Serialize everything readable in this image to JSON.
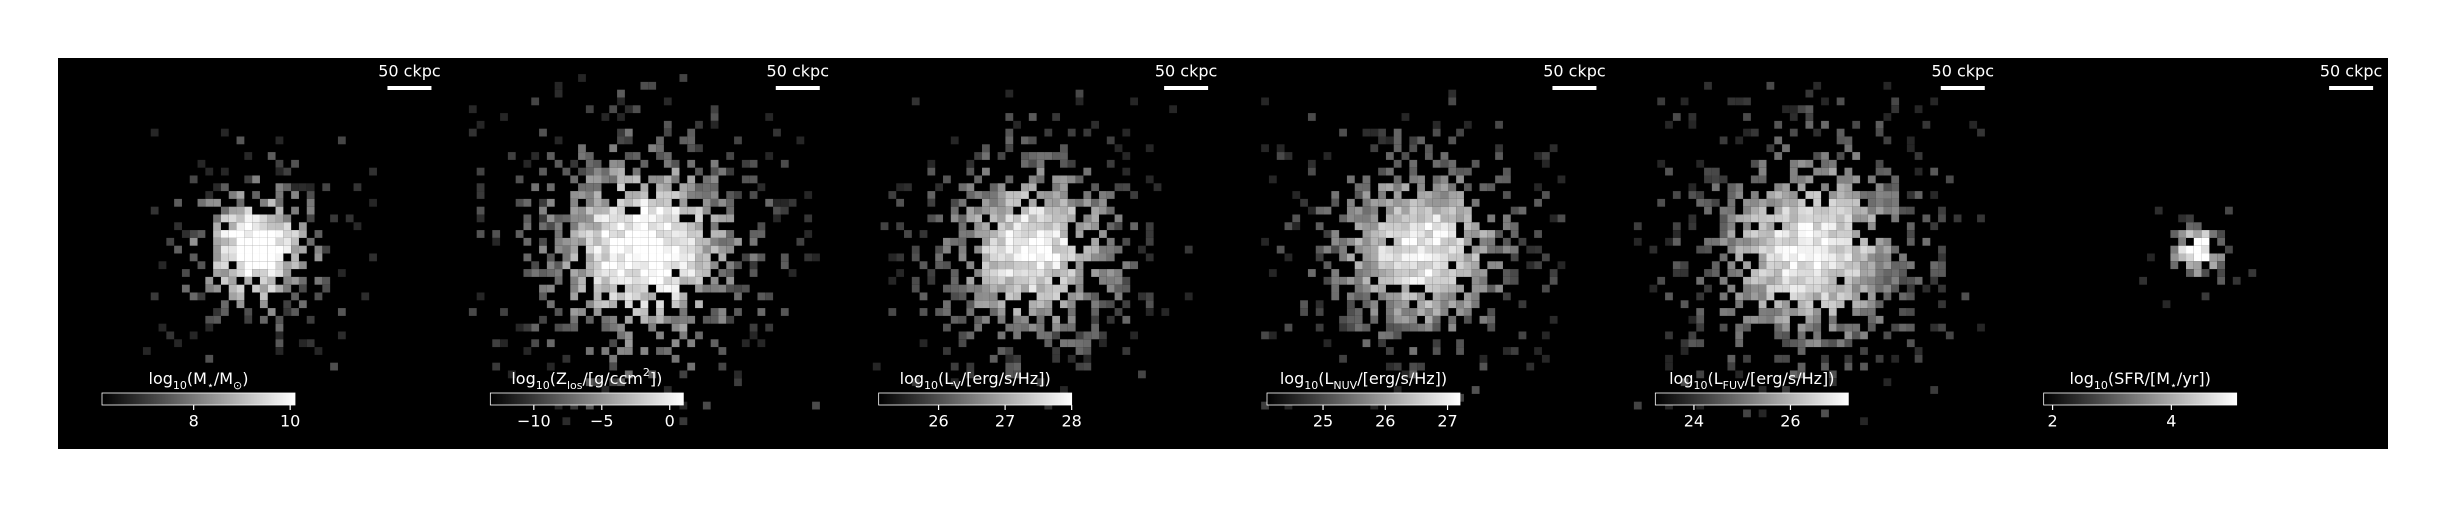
{
  "chart_data": [
    {
      "type": "image",
      "scale_label": "50 ckpc",
      "colorbar_label": [
        {
          "text": "log"
        },
        {
          "text": "10",
          "sub": true
        },
        {
          "text": "(M"
        },
        {
          "text": "⋆",
          "sub": true
        },
        {
          "text": "/M"
        },
        {
          "text": "⊙",
          "sub": true
        },
        {
          "text": ")"
        }
      ],
      "clim": [
        6.1,
        10.1
      ],
      "ticks": [
        8,
        10
      ]
    },
    {
      "type": "image",
      "scale_label": "50 ckpc",
      "colorbar_label": [
        {
          "text": "log"
        },
        {
          "text": "10",
          "sub": true
        },
        {
          "text": "(Z"
        },
        {
          "text": "los",
          "sub": true
        },
        {
          "text": "/[g/ccm"
        },
        {
          "text": "2",
          "sup": true
        },
        {
          "text": "])"
        }
      ],
      "clim": [
        -13.2,
        1.0
      ],
      "ticks": [
        {
          "value": -10,
          "label": "−10"
        },
        {
          "value": -5,
          "label": "−5"
        },
        0
      ]
    },
    {
      "type": "image",
      "scale_label": "50 ckpc",
      "colorbar_label": [
        {
          "text": "log"
        },
        {
          "text": "10",
          "sub": true
        },
        {
          "text": "(L"
        },
        {
          "text": "V",
          "sub": true
        },
        {
          "text": "/[erg/s/Hz])"
        }
      ],
      "clim": [
        25.1,
        28.0
      ],
      "ticks": [
        26,
        27,
        28
      ]
    },
    {
      "type": "image",
      "scale_label": "50 ckpc",
      "colorbar_label": [
        {
          "text": "log"
        },
        {
          "text": "10",
          "sub": true
        },
        {
          "text": "(L"
        },
        {
          "text": "NUV",
          "sub": true
        },
        {
          "text": "/[erg/s/Hz])"
        }
      ],
      "clim": [
        24.1,
        27.2
      ],
      "ticks": [
        25,
        26,
        27
      ]
    },
    {
      "type": "image",
      "scale_label": "50 ckpc",
      "colorbar_label": [
        {
          "text": "log"
        },
        {
          "text": "10",
          "sub": true
        },
        {
          "text": "(L"
        },
        {
          "text": "FUV",
          "sub": true
        },
        {
          "text": "/[erg/s/Hz])"
        }
      ],
      "clim": [
        23.2,
        27.2
      ],
      "ticks": [
        24,
        26
      ]
    },
    {
      "type": "image",
      "scale_label": "50 ckpc",
      "colorbar_label": [
        {
          "text": "log"
        },
        {
          "text": "10",
          "sub": true
        },
        {
          "text": "(SFR/[M"
        },
        {
          "text": "⋆",
          "sub": true
        },
        {
          "text": "/yr])"
        }
      ],
      "clim": [
        1.85,
        5.1
      ],
      "ticks": [
        2,
        4
      ]
    }
  ]
}
